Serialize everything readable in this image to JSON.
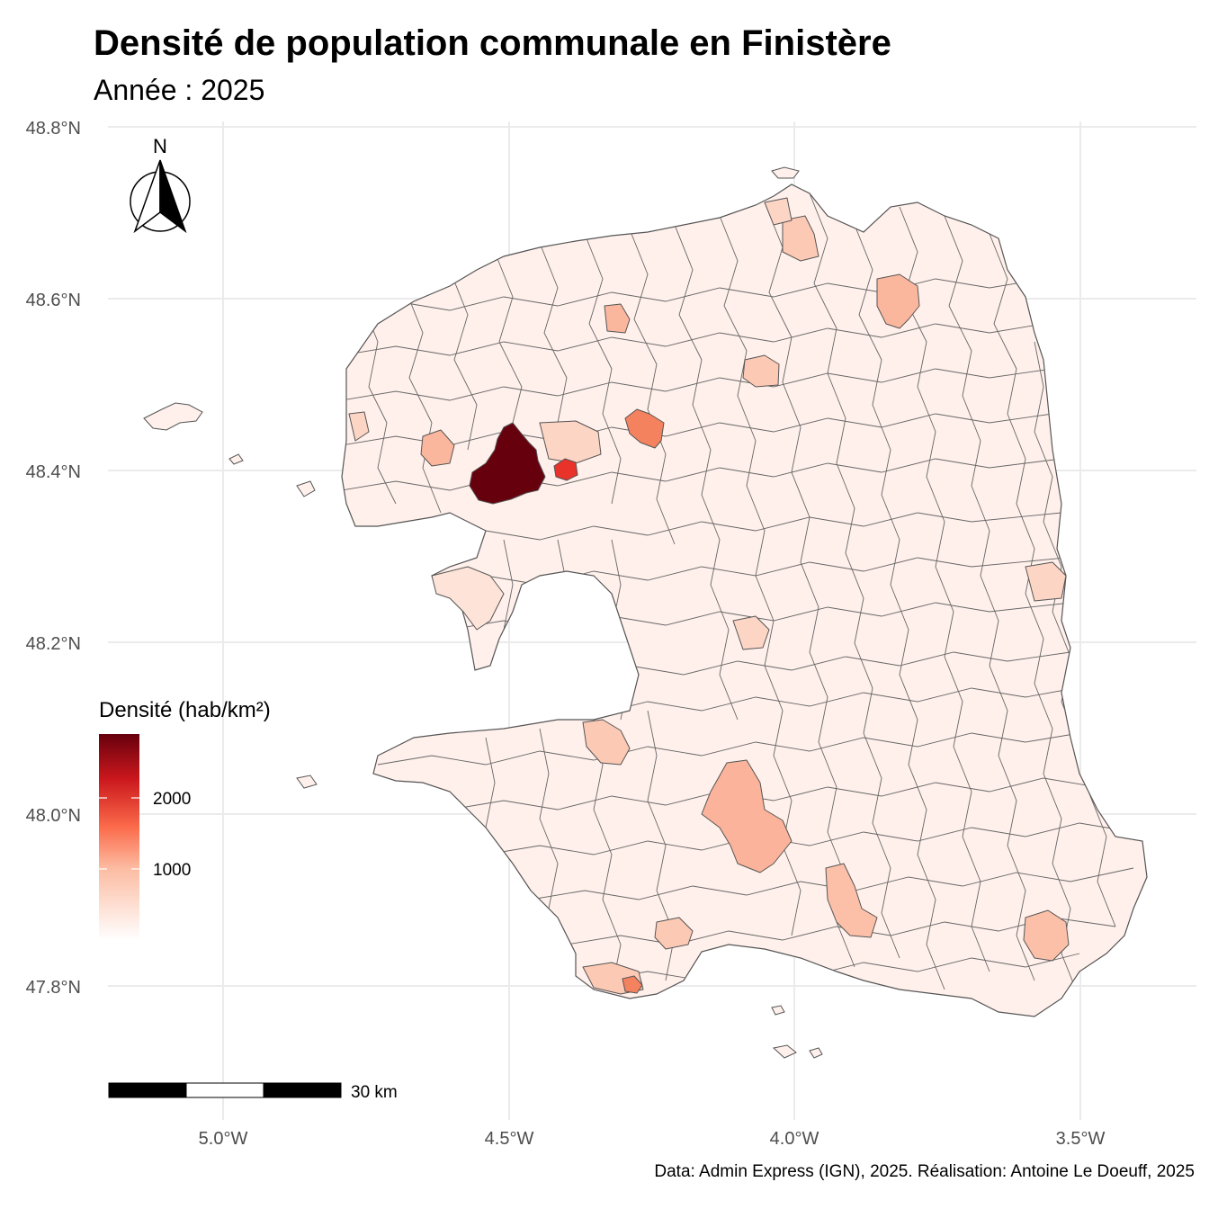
{
  "title": "Densité de population communale en Finistère",
  "subtitle": "Année : 2025",
  "caption": "Data: Admin Express (IGN), 2025. Réalisation: Antoine Le Doeuff, 2025",
  "axes": {
    "x_ticks": [
      "5.0°W",
      "4.5°W",
      "4.0°W",
      "3.5°W"
    ],
    "y_ticks": [
      "48.8°N",
      "48.6°N",
      "48.4°N",
      "48.2°N",
      "48.0°N",
      "47.8°N"
    ]
  },
  "legend": {
    "title": "Densité (hab/km²)",
    "labels": [
      "2000",
      "1000"
    ],
    "colors": [
      "#ffffff",
      "#fcbba1",
      "#fb6a4a",
      "#cb181d",
      "#67000d"
    ]
  },
  "north_arrow": {
    "label": "N"
  },
  "scale_bar": {
    "label": "30 km"
  },
  "colors": {
    "grid": "#ebebeb",
    "border": "#555555",
    "low": "#fff0eb",
    "brest": "#67000d",
    "relecq": "#e8322a",
    "landerneau": "#f4825e",
    "quimper": "#fbb39b",
    "morlaix": "#fbb69e"
  }
}
